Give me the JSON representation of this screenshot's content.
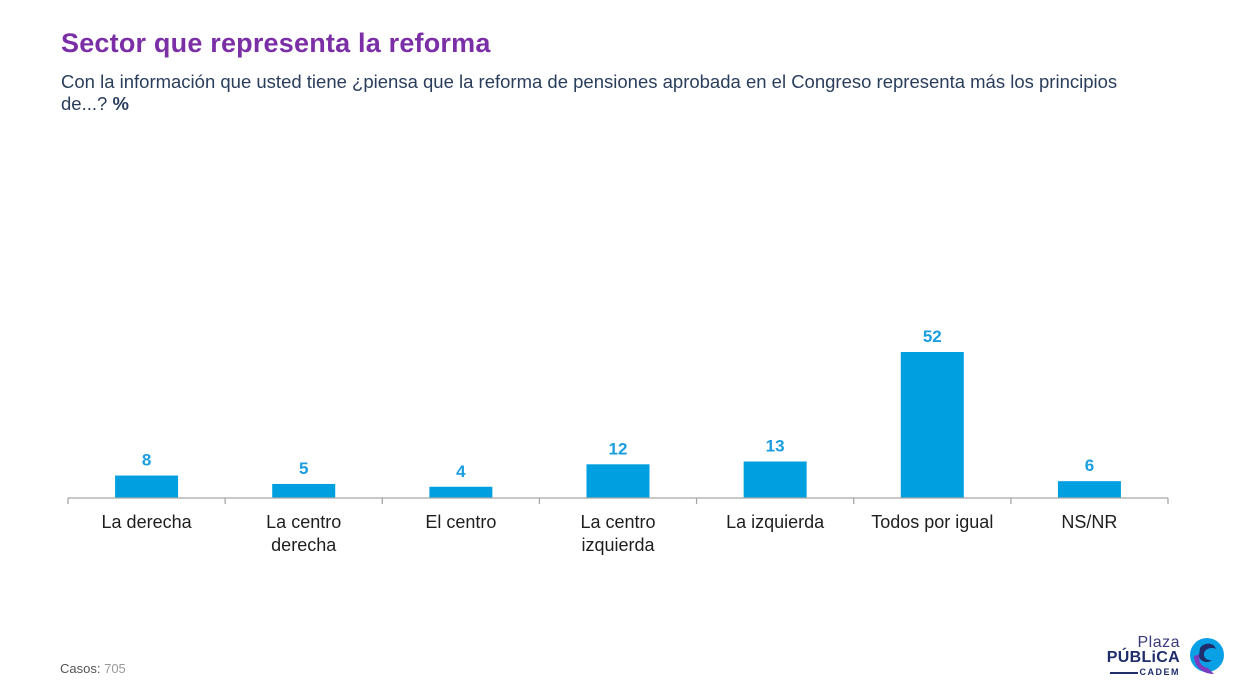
{
  "header": {
    "title": "Sector que representa la reforma",
    "subtitle": "Con la información que usted tiene ¿piensa que la reforma de pensiones aprobada en el Congreso representa más los principios de...?",
    "unit": "%"
  },
  "colors": {
    "title": "#7b2fa6",
    "bar": "#009fe0",
    "label": "#1a9ee0",
    "axis": "#a6a6a6"
  },
  "chart_data": {
    "type": "bar",
    "title": "Sector que representa la reforma",
    "xlabel": "",
    "ylabel": "%",
    "categories": [
      "La derecha",
      "La centro derecha",
      "El centro",
      "La centro izquierda",
      "La izquierda",
      "Todos por igual",
      "NS/NR"
    ],
    "category_lines": [
      [
        "La derecha"
      ],
      [
        "La centro",
        "derecha"
      ],
      [
        "El centro"
      ],
      [
        "La centro",
        "izquierda"
      ],
      [
        "La izquierda"
      ],
      [
        "Todos por igual"
      ],
      [
        "NS/NR"
      ]
    ],
    "values": [
      8,
      5,
      4,
      12,
      13,
      52,
      6
    ],
    "data_labels": [
      "8",
      "5",
      "4",
      "12",
      "13",
      "52",
      "6"
    ],
    "ylim": [
      0,
      52
    ],
    "grid": false,
    "legend": "none"
  },
  "footer": {
    "cases_label": "Casos",
    "cases_value": "705"
  },
  "logo": {
    "line1": "Plaza",
    "line2": "PÚBLiCA",
    "line3": "CADEM"
  }
}
